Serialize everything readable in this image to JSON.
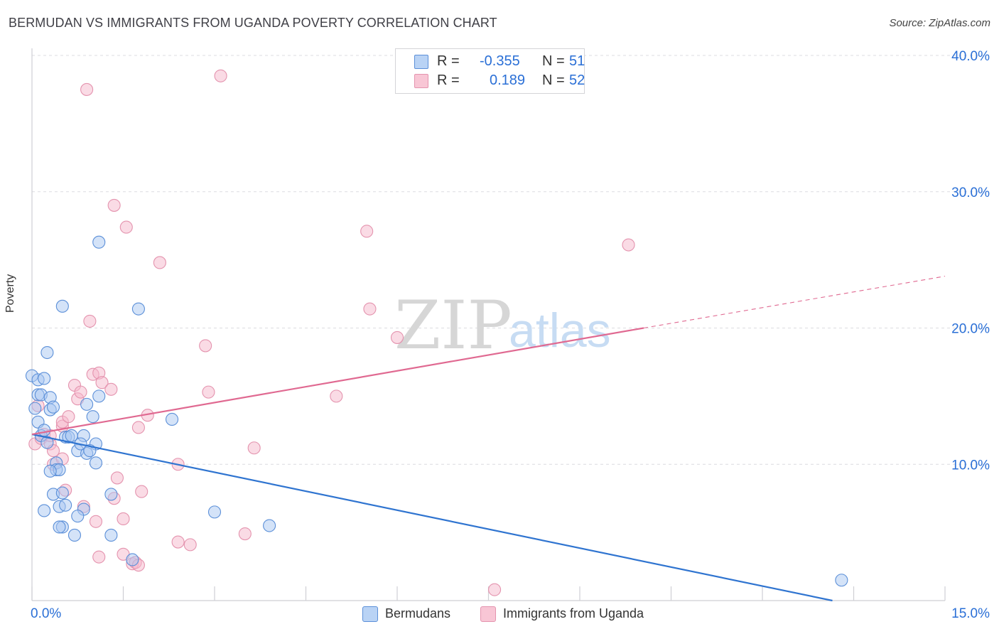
{
  "header": {
    "title": "BERMUDAN VS IMMIGRANTS FROM UGANDA POVERTY CORRELATION CHART",
    "source": "Source: ZipAtlas.com"
  },
  "watermark": {
    "zip": "ZIP",
    "atlas": "atlas"
  },
  "legend": {
    "rows": [
      {
        "r_label": "R =",
        "r_value": "-0.355",
        "n_label": "N =",
        "n_value": "51"
      },
      {
        "r_label": "R =",
        "r_value": "0.189",
        "n_label": "N =",
        "n_value": "52"
      }
    ]
  },
  "bottom_legend": {
    "series1": "Bermudans",
    "series2": "Immigrants from Uganda"
  },
  "colors": {
    "blue_fill": "#a9c8f2",
    "blue_stroke": "#5b8fd8",
    "blue_line": "#2f74d0",
    "pink_fill": "#f6b8cb",
    "pink_stroke": "#e493ae",
    "pink_line": "#e06991",
    "axis_label": "#2a6fd6",
    "grid": "#dcdce0"
  },
  "chart_data": {
    "type": "scatter",
    "title": "BERMUDAN VS IMMIGRANTS FROM UGANDA POVERTY CORRELATION CHART",
    "xlabel": "",
    "ylabel": "Poverty",
    "xlim": [
      0,
      15
    ],
    "ylim": [
      0,
      40
    ],
    "x_tick_labels": [
      "0.0%",
      "15.0%"
    ],
    "y_ticks": [
      10,
      20,
      30,
      40
    ],
    "y_tick_labels": [
      "10.0%",
      "20.0%",
      "30.0%",
      "40.0%"
    ],
    "series": [
      {
        "name": "Bermudans",
        "color": "#5b8fd8",
        "points": [
          [
            0.0,
            16.5
          ],
          [
            0.05,
            14.1
          ],
          [
            0.1,
            16.2
          ],
          [
            0.1,
            15.1
          ],
          [
            0.2,
            16.3
          ],
          [
            0.15,
            15.1
          ],
          [
            0.1,
            13.1
          ],
          [
            0.15,
            12.1
          ],
          [
            0.2,
            12.5
          ],
          [
            0.25,
            11.6
          ],
          [
            0.3,
            14.0
          ],
          [
            0.3,
            14.9
          ],
          [
            0.35,
            14.2
          ],
          [
            0.25,
            18.2
          ],
          [
            0.5,
            21.6
          ],
          [
            0.4,
            10.1
          ],
          [
            0.4,
            9.6
          ],
          [
            0.45,
            9.6
          ],
          [
            0.35,
            7.8
          ],
          [
            0.45,
            6.9
          ],
          [
            0.55,
            7.0
          ],
          [
            0.5,
            7.9
          ],
          [
            0.2,
            6.6
          ],
          [
            0.5,
            5.4
          ],
          [
            0.45,
            5.4
          ],
          [
            0.7,
            4.8
          ],
          [
            0.55,
            12.0
          ],
          [
            0.75,
            11.0
          ],
          [
            0.85,
            12.1
          ],
          [
            0.9,
            10.8
          ],
          [
            0.8,
            11.5
          ],
          [
            1.05,
            11.5
          ],
          [
            0.9,
            14.4
          ],
          [
            1.05,
            10.1
          ],
          [
            1.1,
            15.0
          ],
          [
            1.0,
            13.5
          ],
          [
            0.85,
            6.7
          ],
          [
            0.75,
            6.2
          ],
          [
            1.3,
            7.8
          ],
          [
            1.3,
            4.8
          ],
          [
            1.65,
            3.0
          ],
          [
            1.1,
            26.3
          ],
          [
            1.75,
            21.4
          ],
          [
            2.3,
            13.3
          ],
          [
            3.0,
            6.5
          ],
          [
            3.9,
            5.5
          ],
          [
            13.3,
            1.5
          ],
          [
            0.6,
            12.0
          ],
          [
            0.3,
            9.5
          ],
          [
            0.65,
            12.1
          ],
          [
            0.95,
            11.0
          ]
        ]
      },
      {
        "name": "Immigrants from Uganda",
        "color": "#e493ae",
        "points": [
          [
            0.05,
            11.5
          ],
          [
            0.1,
            14.3
          ],
          [
            0.15,
            11.9
          ],
          [
            0.2,
            12.2
          ],
          [
            0.3,
            11.5
          ],
          [
            0.3,
            12.1
          ],
          [
            0.35,
            11.0
          ],
          [
            0.35,
            10.0
          ],
          [
            0.5,
            10.4
          ],
          [
            0.5,
            12.8
          ],
          [
            0.5,
            13.1
          ],
          [
            0.55,
            8.1
          ],
          [
            0.6,
            13.5
          ],
          [
            0.7,
            15.8
          ],
          [
            0.75,
            14.8
          ],
          [
            0.8,
            15.3
          ],
          [
            0.9,
            37.5
          ],
          [
            0.95,
            20.5
          ],
          [
            1.0,
            16.6
          ],
          [
            1.1,
            16.7
          ],
          [
            1.15,
            16.0
          ],
          [
            1.3,
            15.5
          ],
          [
            1.35,
            29.0
          ],
          [
            1.55,
            27.4
          ],
          [
            1.4,
            9.0
          ],
          [
            1.5,
            6.0
          ],
          [
            1.35,
            7.5
          ],
          [
            1.05,
            5.8
          ],
          [
            0.85,
            6.9
          ],
          [
            1.1,
            3.2
          ],
          [
            1.5,
            3.4
          ],
          [
            1.65,
            2.7
          ],
          [
            1.7,
            2.8
          ],
          [
            1.75,
            2.6
          ],
          [
            1.75,
            12.7
          ],
          [
            1.8,
            8.0
          ],
          [
            1.9,
            13.6
          ],
          [
            2.1,
            24.8
          ],
          [
            2.4,
            10.0
          ],
          [
            2.4,
            4.3
          ],
          [
            2.6,
            4.1
          ],
          [
            2.85,
            18.7
          ],
          [
            2.9,
            15.3
          ],
          [
            3.1,
            38.5
          ],
          [
            3.5,
            4.9
          ],
          [
            3.65,
            11.2
          ],
          [
            5.0,
            15.0
          ],
          [
            5.5,
            27.1
          ],
          [
            5.55,
            21.4
          ],
          [
            6.0,
            19.3
          ],
          [
            7.6,
            0.8
          ],
          [
            9.8,
            26.1
          ]
        ]
      }
    ],
    "trendlines": [
      {
        "series": "Bermudans",
        "from": [
          0,
          12.2
        ],
        "to": [
          13.15,
          0
        ],
        "style": "solid"
      },
      {
        "series": "Immigrants from Uganda",
        "from": [
          0,
          12.2
        ],
        "to": [
          10.05,
          20.0
        ],
        "style": "solid"
      },
      {
        "series": "Immigrants from Uganda",
        "from": [
          10.05,
          20.0
        ],
        "to": [
          15.0,
          23.8
        ],
        "style": "dashed"
      }
    ]
  }
}
